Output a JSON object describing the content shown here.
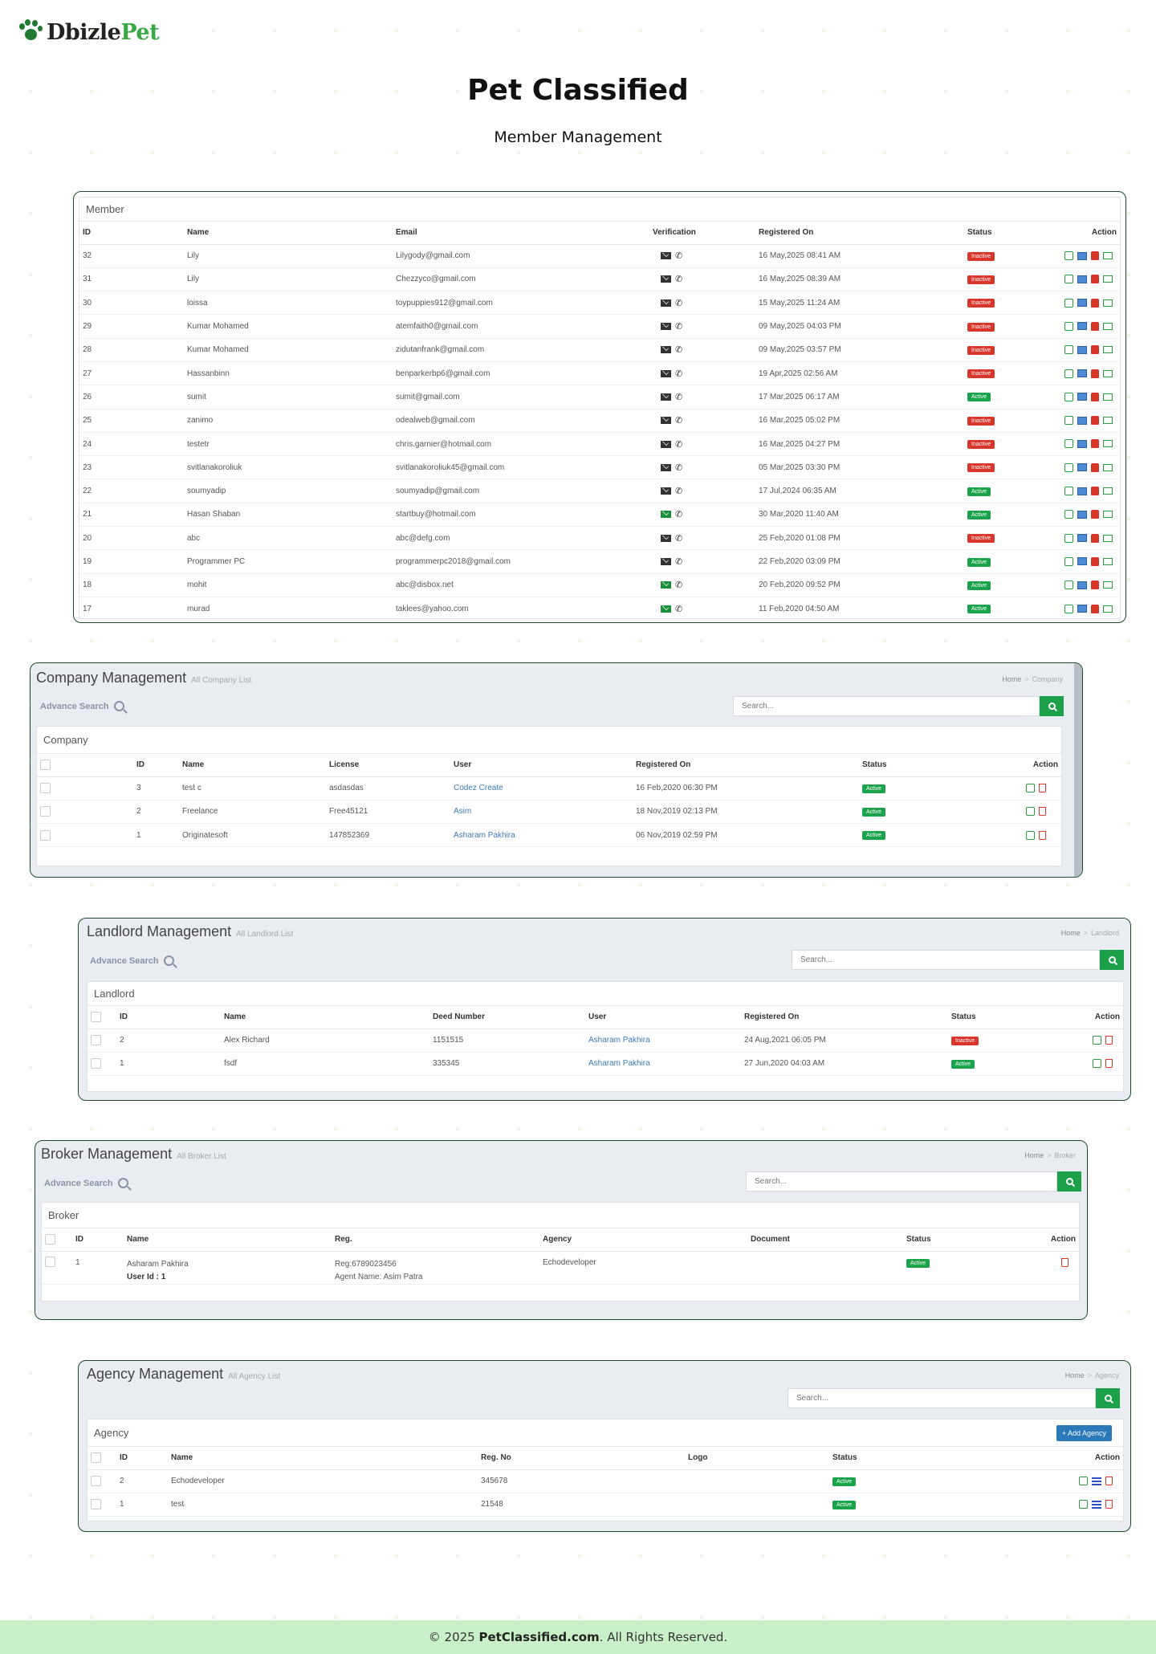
{
  "brand": {
    "part1": "Dbizle",
    "part2": "Pet"
  },
  "page": {
    "title": "Pet Classified",
    "subtitle": "Member Management"
  },
  "member": {
    "card_title": "Member",
    "columns": [
      "ID",
      "Name",
      "Email",
      "Verification",
      "Registered On",
      "Status",
      "Action"
    ],
    "rows": [
      {
        "id": "32",
        "name": "Lily",
        "email": "Lilygody@gmail.com",
        "email_verified": false,
        "registered": "16 May,2025 08:41 AM",
        "status": "Inactive"
      },
      {
        "id": "31",
        "name": "Lily",
        "email": "Chezzyco@gmail.com",
        "email_verified": false,
        "registered": "16 May,2025 08:39 AM",
        "status": "Inactive"
      },
      {
        "id": "30",
        "name": "loissa",
        "email": "toypuppies912@gmail.com",
        "email_verified": false,
        "registered": "15 May,2025 11:24 AM",
        "status": "Inactive"
      },
      {
        "id": "29",
        "name": "Kumar Mohamed",
        "email": "atemfaith0@gmail.com",
        "email_verified": false,
        "registered": "09 May,2025 04:03 PM",
        "status": "Inactive"
      },
      {
        "id": "28",
        "name": "Kumar Mohamed",
        "email": "zidutanfrank@gmail.com",
        "email_verified": false,
        "registered": "09 May,2025 03:57 PM",
        "status": "Inactive"
      },
      {
        "id": "27",
        "name": "Hassanbinn",
        "email": "benparkerbp6@gmail.com",
        "email_verified": false,
        "registered": "19 Apr,2025 02:56 AM",
        "status": "Inactive"
      },
      {
        "id": "26",
        "name": "sumit",
        "email": "sumit@gmail.com",
        "email_verified": false,
        "registered": "17 Mar,2025 06:17 AM",
        "status": "Active"
      },
      {
        "id": "25",
        "name": "zanimo",
        "email": "odealweb@gmail.com",
        "email_verified": false,
        "registered": "16 Mar,2025 05:02 PM",
        "status": "Inactive"
      },
      {
        "id": "24",
        "name": "testetr",
        "email": "chris.garnier@hotmail.com",
        "email_verified": false,
        "registered": "16 Mar,2025 04:27 PM",
        "status": "Inactive"
      },
      {
        "id": "23",
        "name": "svitlanakoroliuk",
        "email": "svitlanakoroliuk45@gmail.com",
        "email_verified": false,
        "registered": "05 Mar,2025 03:30 PM",
        "status": "Inactive"
      },
      {
        "id": "22",
        "name": "soumyadip",
        "email": "soumyadip@gmail.com",
        "email_verified": false,
        "registered": "17 Jul,2024 06:35 AM",
        "status": "Active"
      },
      {
        "id": "21",
        "name": "Hasan Shaban",
        "email": "startbuy@hotmail.com",
        "email_verified": true,
        "registered": "30 Mar,2020 11:40 AM",
        "status": "Active"
      },
      {
        "id": "20",
        "name": "abc",
        "email": "abc@defg.com",
        "email_verified": false,
        "registered": "25 Feb,2020 01:08 PM",
        "status": "Inactive"
      },
      {
        "id": "19",
        "name": "Programmer PC",
        "email": "programmerpc2018@gmail.com",
        "email_verified": false,
        "registered": "22 Feb,2020 03:09 PM",
        "status": "Active"
      },
      {
        "id": "18",
        "name": "mohit",
        "email": "abc@disbox.net",
        "email_verified": true,
        "registered": "20 Feb,2020 09:52 PM",
        "status": "Active"
      },
      {
        "id": "17",
        "name": "murad",
        "email": "taklees@yahoo.com",
        "email_verified": true,
        "registered": "11 Feb,2020 04:50 AM",
        "status": "Active"
      }
    ]
  },
  "company": {
    "heading": "Company Management",
    "subheading": "All Company List",
    "breadcrumb": {
      "home": "Home",
      "current": "Company"
    },
    "advance_search": "Advance Search",
    "search_placeholder": "Search...",
    "card_title": "Company",
    "columns": [
      "ID",
      "Name",
      "License",
      "User",
      "Registered On",
      "Status",
      "Action"
    ],
    "rows": [
      {
        "id": "3",
        "name": "test c",
        "license": "asdasdas",
        "user": "Codez Create",
        "registered": "16 Feb,2020 06:30 PM",
        "status": "Active"
      },
      {
        "id": "2",
        "name": "Freelance",
        "license": "Free45121",
        "user": "Asim",
        "registered": "18 Nov,2019 02:13 PM",
        "status": "Active"
      },
      {
        "id": "1",
        "name": "Originatesoft",
        "license": "147852369",
        "user": "Asharam Pakhira",
        "registered": "06 Nov,2019 02:59 PM",
        "status": "Active"
      }
    ]
  },
  "landlord": {
    "heading": "Landlord Management",
    "subheading": "All Landlord List",
    "breadcrumb": {
      "home": "Home",
      "current": "Landlord"
    },
    "advance_search": "Advance Search",
    "search_placeholder": "Search...",
    "card_title": "Landlord",
    "columns": [
      "ID",
      "Name",
      "Deed Number",
      "User",
      "Registered On",
      "Status",
      "Action"
    ],
    "rows": [
      {
        "id": "2",
        "name": "Alex Richard",
        "deed": "1151515",
        "user": "Asharam Pakhira",
        "registered": "24 Aug,2021 06:05 PM",
        "status": "Inactive"
      },
      {
        "id": "1",
        "name": "fsdf",
        "deed": "335345",
        "user": "Asharam Pakhira",
        "registered": "27 Jun,2020 04:03 AM",
        "status": "Active"
      }
    ]
  },
  "broker": {
    "heading": "Broker Management",
    "subheading": "All Broker List",
    "breadcrumb": {
      "home": "Home",
      "current": "Broker"
    },
    "advance_search": "Advance Search",
    "search_placeholder": "Search...",
    "card_title": "Broker",
    "columns": [
      "ID",
      "Name",
      "Reg.",
      "Agency",
      "Document",
      "Status",
      "Action"
    ],
    "rows": [
      {
        "id": "1",
        "name": "Asharam Pakhira",
        "user_id": "User Id : 1",
        "reg": "Reg:6789023456",
        "agent": "Agent Name: Asim Patra",
        "agency": "Echodeveloper",
        "status": "Active"
      }
    ]
  },
  "agency": {
    "heading": "Agency Management",
    "subheading": "All Agency List",
    "breadcrumb": {
      "home": "Home",
      "current": "Agency"
    },
    "search_placeholder": "Search...",
    "card_title": "Agency",
    "add_button": "+ Add Agency",
    "columns": [
      "ID",
      "Name",
      "Reg. No",
      "Logo",
      "Status",
      "Action"
    ],
    "rows": [
      {
        "id": "2",
        "name": "Echodeveloper",
        "reg_no": "345678",
        "status": "Active"
      },
      {
        "id": "1",
        "name": "test",
        "reg_no": "21548",
        "status": "Active"
      }
    ]
  },
  "footer": {
    "prefix": "© 2025 ",
    "site": "PetClassified.com",
    "suffix": ". All Rights Reserved."
  },
  "colors": {
    "brand_green": "#3aa845",
    "active": "#1aa34a",
    "inactive": "#d9362b",
    "link": "#3d7ab8"
  }
}
